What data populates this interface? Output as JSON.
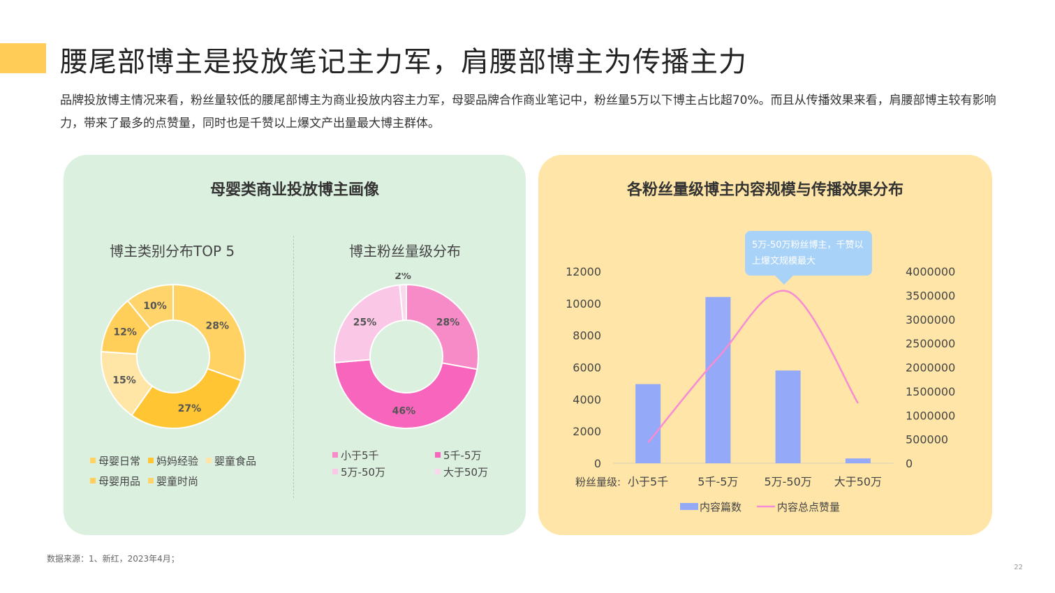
{
  "page": {
    "title": "腰尾部博主是投放笔记主力军，肩腰部博主为传播主力",
    "subtitle": "品牌投放博主情况来看，粉丝量较低的腰尾部博主为商业投放内容主力军，母婴品牌合作商业笔记中，粉丝量5万以下博主占比超70%。而且从传播效果来看，肩腰部博主较有影响力，带来了最多的点赞量，同时也是千赞以上爆文产出量最大博主群体。",
    "footer": "数据来源：1、新红，2023年4月；",
    "page_number": "22",
    "accent_color": "#FFCD57"
  },
  "left_panel": {
    "title": "母婴类商业投放博主画像"
  },
  "right_panel": {
    "title": "各粉丝量级博主内容规模与传播效果分布",
    "callout": "5万-50万粉丝博主，千赞以上爆文规模最大"
  },
  "chart_data": [
    {
      "type": "pie",
      "title": "博主类别分布TOP 5",
      "donut": true,
      "slices": [
        {
          "label": "母婴日常",
          "value": 28,
          "display": "28%",
          "color": "#FFD263"
        },
        {
          "label": "妈妈经验",
          "value": 27,
          "display": "27%",
          "color": "#FFC533"
        },
        {
          "label": "婴童食品",
          "value": 15,
          "display": "15%",
          "color": "#FFE6A6"
        },
        {
          "label": "母婴用品",
          "value": 12,
          "display": "12%",
          "color": "#FFCF59"
        },
        {
          "label": "婴童时尚",
          "value": 10,
          "display": "10%",
          "color": "#FFD46A"
        }
      ],
      "legend": [
        "母婴日常",
        "妈妈经验",
        "婴童食品",
        "母婴用品",
        "婴童时尚"
      ]
    },
    {
      "type": "pie",
      "title": "博主粉丝量级分布",
      "donut": true,
      "slices": [
        {
          "label": "小于5千",
          "value": 28,
          "display": "28%",
          "color": "#F78BC8"
        },
        {
          "label": "5千-5万",
          "value": 46,
          "display": "46%",
          "color": "#F766BC"
        },
        {
          "label": "5万-50万",
          "value": 25,
          "display": "25%",
          "color": "#FAC7E6"
        },
        {
          "label": "大于50万",
          "value": 1.5,
          "display": "2%",
          "color": "#FBD8EC"
        }
      ],
      "legend": [
        "小于5千",
        "5千-5万",
        "5万-50万",
        "大于50万"
      ]
    },
    {
      "type": "bar",
      "categories": [
        "小于5千",
        "5千-5万",
        "5万-50万",
        "大于50万"
      ],
      "category_prefix": "粉丝量级:",
      "series": [
        {
          "name": "内容篇数",
          "type": "bar",
          "axis": "left",
          "values": [
            4950,
            10400,
            5800,
            300
          ],
          "color": "#94A9F7"
        },
        {
          "name": "内容总点赞量",
          "type": "line",
          "axis": "right",
          "values": [
            430000,
            2200000,
            3580000,
            1250000
          ],
          "color": "#F78BD4"
        }
      ],
      "ylim_left": [
        0,
        12000
      ],
      "yticks_left": [
        "0",
        "2000",
        "4000",
        "6000",
        "8000",
        "10000",
        "12000"
      ],
      "ylim_right": [
        0,
        4000000
      ],
      "yticks_right": [
        "0",
        "500000",
        "1000000",
        "1500000",
        "2000000",
        "2500000",
        "3000000",
        "3500000",
        "4000000"
      ],
      "legend_position": "bottom"
    }
  ]
}
